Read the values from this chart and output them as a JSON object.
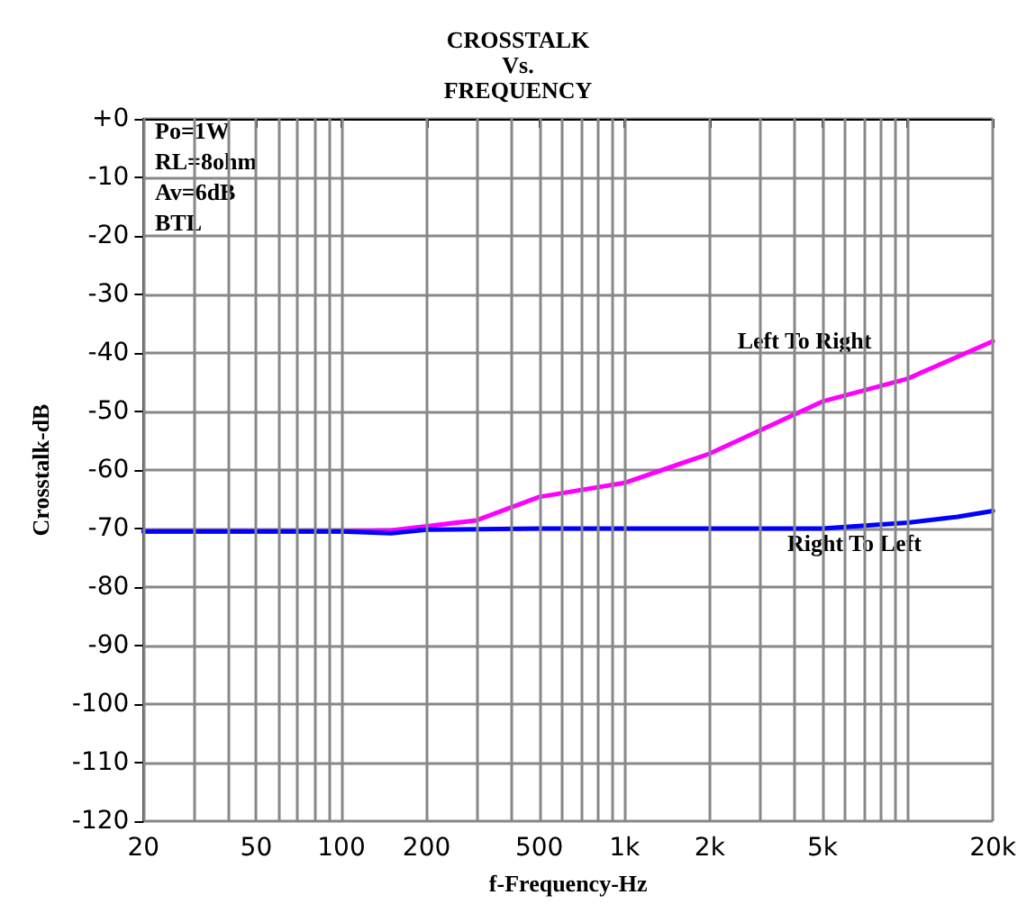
{
  "chart_data": {
    "type": "line",
    "title": "CROSSTALK\nVs.\nFREQUENCY",
    "xlabel": "f-Frequency-Hz",
    "ylabel": "Crosstalk-dB",
    "log": "x",
    "xlim": [
      20,
      20000
    ],
    "xticks": [
      20,
      50,
      100,
      200,
      500,
      {
        "value": 1000,
        "label": "1k"
      },
      {
        "value": 2000,
        "label": "2k"
      },
      {
        "value": 5000,
        "label": "5k"
      },
      {
        "value": 10000,
        "label": null
      },
      {
        "value": 20000,
        "label": "20k"
      }
    ],
    "ylim": [
      -120,
      0
    ],
    "yticks": [
      {
        "value": 0,
        "label": "+0"
      },
      -10,
      -20,
      -30,
      -40,
      -50,
      -60,
      -70,
      -80,
      -90,
      -100,
      -110,
      -120
    ],
    "grid": true,
    "legend": false,
    "marker": "none",
    "line_style": "solid",
    "annotations": [
      "Po=1W\nRL=8ohm\nAv=6dB\nBTL"
    ],
    "series": [
      {
        "name": "Left To Right",
        "color": "#ff00ff",
        "x": [
          20,
          50,
          100,
          150,
          200,
          300,
          500,
          1000,
          2000,
          5000,
          10000,
          20000
        ],
        "values": [
          -70.5,
          -70.5,
          -70.5,
          -70.3,
          -69.6,
          -68.6,
          -64.6,
          -62.2,
          -57.2,
          -48.3,
          -44.4,
          -38
        ]
      },
      {
        "name": "Right To Left",
        "color": "#0000ff",
        "x": [
          20,
          50,
          100,
          150,
          200,
          500,
          1000,
          2000,
          5000,
          10000,
          15000,
          20000
        ],
        "values": [
          -70.5,
          -70.5,
          -70.5,
          -70.8,
          -70.2,
          -70,
          -70,
          -70,
          -70,
          -69,
          -68,
          -67
        ]
      }
    ]
  }
}
